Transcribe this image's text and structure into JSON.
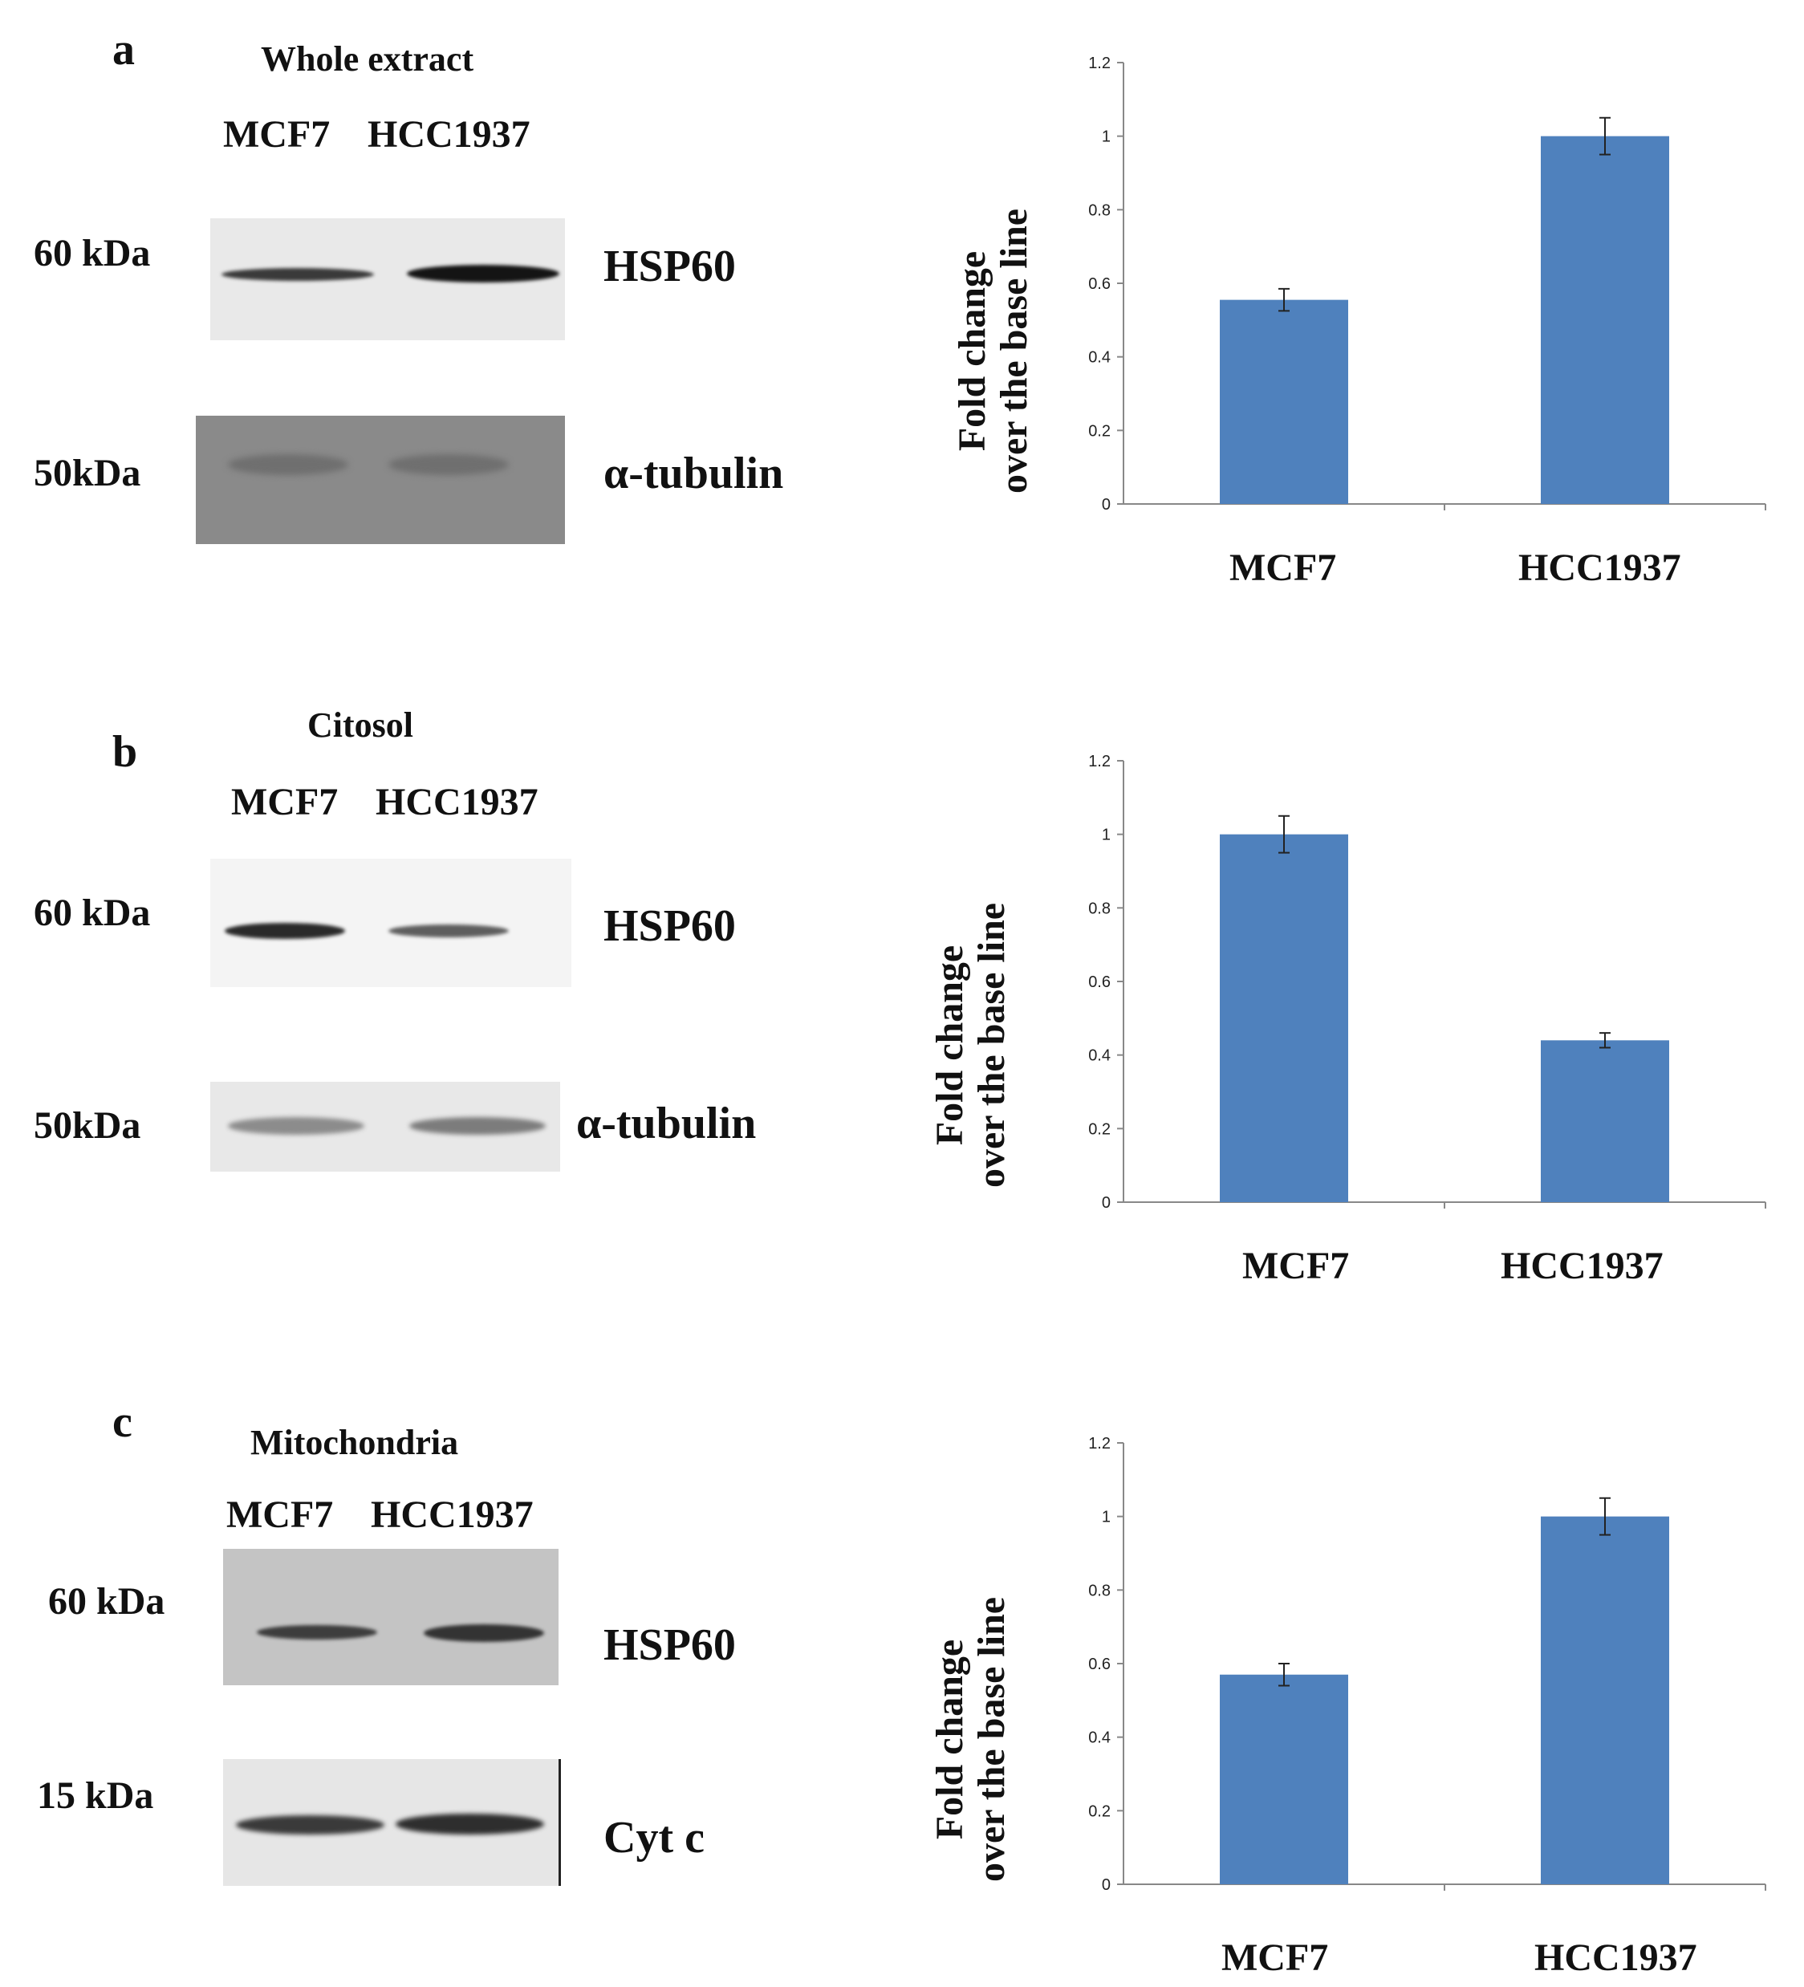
{
  "panels": [
    {
      "letter": "a",
      "title": "Whole extract",
      "lanes": [
        "MCF7",
        "HCC1937"
      ],
      "blots": [
        {
          "kda": "60 kDa",
          "protein": "HSP60"
        },
        {
          "kda": "50kDa",
          "protein": "α-tubulin"
        }
      ]
    },
    {
      "letter": "b",
      "title": "Citosol",
      "lanes": [
        "MCF7",
        "HCC1937"
      ],
      "blots": [
        {
          "kda": "60 kDa",
          "protein": "HSP60"
        },
        {
          "kda": "50kDa",
          "protein": "α-tubulin"
        }
      ]
    },
    {
      "letter": "c",
      "title": "Mitochondria",
      "lanes": [
        "MCF7",
        "HCC1937"
      ],
      "blots": [
        {
          "kda": "60 kDa",
          "protein": "HSP60"
        },
        {
          "kda": "15 kDa",
          "protein": "Cyt c"
        }
      ]
    }
  ],
  "colors": {
    "bar": "#4f81bd",
    "axis": "#888888"
  },
  "chart_data": [
    {
      "type": "bar",
      "panel": "a",
      "categories": [
        "MCF7",
        "HCC1937"
      ],
      "values": [
        0.555,
        1.0
      ],
      "errors": [
        0.03,
        0.05
      ],
      "ylabel_line1": "Fold change",
      "ylabel_line2": "over the base line",
      "ylim": [
        0,
        1.2
      ],
      "yticks": [
        "0",
        "0.2",
        "0.4",
        "0.6",
        "0.8",
        "1",
        "1.2"
      ]
    },
    {
      "type": "bar",
      "panel": "b",
      "categories": [
        "MCF7",
        "HCC1937"
      ],
      "values": [
        1.0,
        0.44
      ],
      "errors": [
        0.05,
        0.02
      ],
      "ylabel_line1": "Fold change",
      "ylabel_line2": "over the base line",
      "ylim": [
        0,
        1.2
      ],
      "yticks": [
        "0",
        "0.2",
        "0.4",
        "0.6",
        "0.8",
        "1",
        "1.2"
      ]
    },
    {
      "type": "bar",
      "panel": "c",
      "categories": [
        "MCF7",
        "HCC1937"
      ],
      "values": [
        0.57,
        1.0
      ],
      "errors": [
        0.03,
        0.05
      ],
      "ylabel_line1": "Fold change",
      "ylabel_line2": "over the base line",
      "ylim": [
        0,
        1.2
      ],
      "yticks": [
        "0",
        "0.2",
        "0.4",
        "0.6",
        "0.8",
        "1",
        "1.2"
      ]
    }
  ]
}
